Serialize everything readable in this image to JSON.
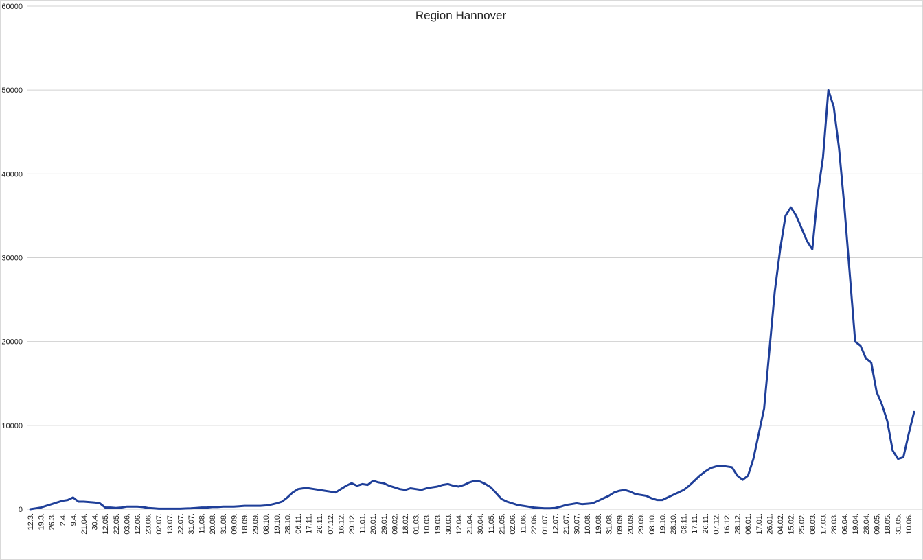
{
  "chart_data": {
    "type": "line",
    "title": "Region Hannover",
    "categories": [
      "12.3.",
      null,
      "19.3.",
      null,
      "26.3.",
      null,
      "2.4.",
      null,
      "9.4.",
      null,
      "21.04.",
      null,
      "30.4.",
      null,
      "12.05.",
      null,
      "22.05.",
      null,
      "03.06.",
      null,
      "12.06.",
      null,
      "23.06.",
      null,
      "02.07.",
      null,
      "13.07.",
      null,
      "22.07.",
      null,
      "31.07.",
      null,
      "11.08.",
      null,
      "20.08.",
      null,
      "31.08.",
      null,
      "09.09.",
      null,
      "18.09.",
      null,
      "29.09.",
      null,
      "08.10.",
      null,
      "19.10.",
      null,
      "28.10.",
      null,
      "06.11.",
      null,
      "17.11.",
      null,
      "26.11.",
      null,
      "07.12.",
      null,
      "16.12.",
      null,
      "29.12.",
      null,
      "11.01.",
      null,
      "20.01.",
      null,
      "29.01.",
      null,
      "09.02.",
      null,
      "18.02.",
      null,
      "01.03.",
      null,
      "10.03.",
      null,
      "19.03.",
      null,
      "30.03.",
      null,
      "12.04.",
      null,
      "21.04.",
      null,
      "30.04.",
      null,
      "11.05.",
      null,
      "21.05.",
      null,
      "02.06.",
      null,
      "11.06.",
      null,
      "22.06.",
      null,
      "01.07.",
      null,
      "12.07.",
      null,
      "21.07.",
      null,
      "30.07.",
      null,
      "10.08.",
      null,
      "19.08.",
      null,
      "31.08.",
      null,
      "09.09.",
      null,
      "20.09.",
      null,
      "29.09.",
      null,
      "08.10.",
      null,
      "19.10.",
      null,
      "28.10.",
      null,
      "08.11.",
      null,
      "17.11.",
      null,
      "26.11.",
      null,
      "07.12.",
      null,
      "16.12.",
      null,
      "28.12.",
      null,
      "06.01.",
      null,
      "17.01.",
      null,
      "26.01.",
      null,
      "04.02.",
      null,
      "15.02.",
      null,
      "25.02.",
      null,
      "08.03.",
      null,
      "17.03.",
      null,
      "28.03.",
      null,
      "06.04.",
      null,
      "19.04.",
      null,
      "28.04.",
      null,
      "09.05.",
      null,
      "18.05.",
      null,
      "31.05.",
      null,
      "10.06.",
      null
    ],
    "values": [
      0,
      100,
      200,
      400,
      600,
      800,
      1000,
      1100,
      1400,
      900,
      900,
      850,
      800,
      700,
      200,
      200,
      150,
      200,
      300,
      300,
      300,
      250,
      150,
      100,
      50,
      50,
      50,
      50,
      50,
      80,
      100,
      150,
      200,
      200,
      250,
      250,
      300,
      300,
      300,
      350,
      400,
      400,
      400,
      400,
      450,
      550,
      700,
      900,
      1400,
      2000,
      2400,
      2500,
      2500,
      2400,
      2300,
      2200,
      2100,
      2000,
      2400,
      2800,
      3100,
      2800,
      3000,
      2900,
      3400,
      3200,
      3100,
      2800,
      2600,
      2400,
      2300,
      2500,
      2400,
      2300,
      2500,
      2600,
      2700,
      2900,
      3000,
      2800,
      2700,
      2900,
      3200,
      3400,
      3300,
      3000,
      2600,
      1900,
      1200,
      900,
      700,
      500,
      400,
      300,
      200,
      150,
      100,
      100,
      150,
      300,
      500,
      600,
      700,
      600,
      650,
      700,
      1000,
      1300,
      1600,
      2000,
      2200,
      2300,
      2100,
      1800,
      1700,
      1600,
      1300,
      1100,
      1100,
      1400,
      1700,
      2000,
      2300,
      2800,
      3400,
      4000,
      4500,
      4900,
      5100,
      5200,
      5100,
      5000,
      4000,
      3500,
      4000,
      6000,
      9000,
      12000,
      19000,
      26000,
      31000,
      35000,
      36000,
      35000,
      33500,
      32000,
      31000,
      37500,
      42000,
      50000,
      48000,
      43000,
      36000,
      28000,
      20000,
      19500,
      18000,
      17500,
      14000,
      12500,
      10500,
      7000,
      6000,
      6200,
      9000,
      11600
    ],
    "color": "#1f3f99",
    "ylim": [
      0,
      60000
    ],
    "yticks": [
      0,
      10000,
      20000,
      30000,
      40000,
      50000,
      60000
    ],
    "grid": true
  }
}
